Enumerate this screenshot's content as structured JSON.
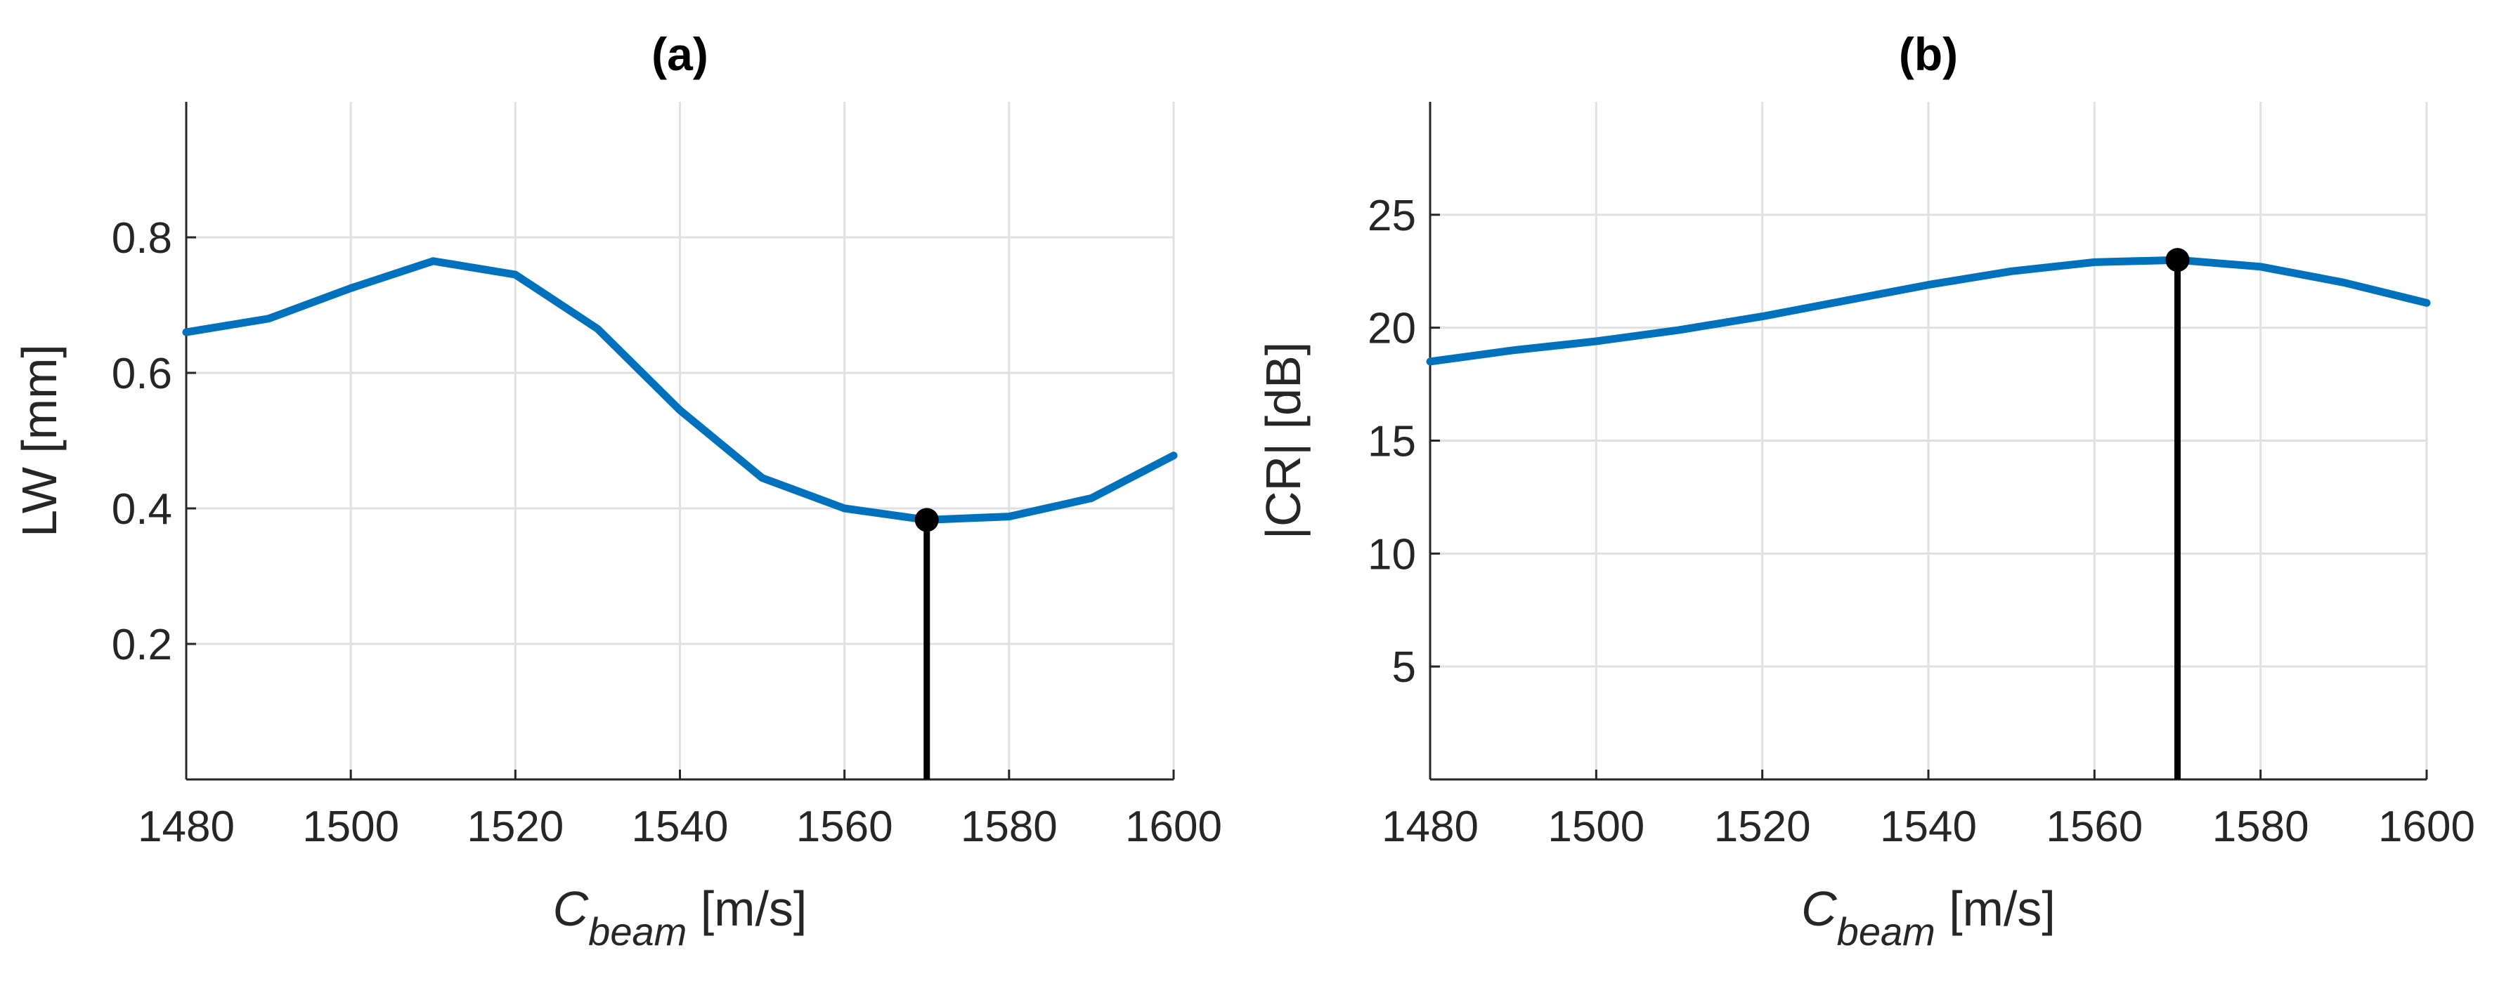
{
  "colors": {
    "series": "#0072BD",
    "marker": "#000000",
    "grid": "#e0e0e0",
    "axis": "#262626"
  },
  "chart_data": [
    {
      "type": "line",
      "title": "(a)",
      "xlabel_main": "C",
      "xlabel_sub": "beam",
      "xlabel_unit": " [m/s]",
      "ylabel": "LW [mm]",
      "xlim": [
        1480,
        1600
      ],
      "ylim": [
        0,
        1.0
      ],
      "xticks": [
        1480,
        1500,
        1520,
        1540,
        1560,
        1580,
        1600
      ],
      "xtick_labels": [
        "1480",
        "1500",
        "1520",
        "1540",
        "1560",
        "1580",
        "1600"
      ],
      "yticks": [
        0.2,
        0.4,
        0.6,
        0.8
      ],
      "ytick_labels": [
        "0.2",
        "0.4",
        "0.6",
        "0.8"
      ],
      "grid": true,
      "series": [
        {
          "x": [
            1480,
            1490,
            1500,
            1510,
            1520,
            1530,
            1540,
            1550,
            1560,
            1570,
            1580,
            1590,
            1600
          ],
          "y": [
            0.66,
            0.68,
            0.725,
            0.765,
            0.745,
            0.665,
            0.545,
            0.445,
            0.4,
            0.383,
            0.388,
            0.415,
            0.478
          ]
        }
      ],
      "marker": {
        "x": 1570,
        "y": 0.383
      }
    },
    {
      "type": "line",
      "title": "(b)",
      "xlabel_main": "C",
      "xlabel_sub": "beam",
      "xlabel_unit": " [m/s]",
      "ylabel": "|CR| [dB]",
      "xlim": [
        1480,
        1600
      ],
      "ylim": [
        0,
        30
      ],
      "xticks": [
        1480,
        1500,
        1520,
        1540,
        1560,
        1580,
        1600
      ],
      "xtick_labels": [
        "1480",
        "1500",
        "1520",
        "1540",
        "1560",
        "1580",
        "1600"
      ],
      "yticks": [
        5,
        10,
        15,
        20,
        25
      ],
      "ytick_labels": [
        "5",
        "10",
        "15",
        "20",
        "25"
      ],
      "grid": true,
      "series": [
        {
          "x": [
            1480,
            1490,
            1500,
            1510,
            1520,
            1530,
            1540,
            1550,
            1560,
            1570,
            1580,
            1590,
            1600
          ],
          "y": [
            18.5,
            19.0,
            19.4,
            19.9,
            20.5,
            21.2,
            21.9,
            22.5,
            22.9,
            23.0,
            22.7,
            22.0,
            21.1
          ]
        }
      ],
      "marker": {
        "x": 1570,
        "y": 23.0
      }
    }
  ]
}
